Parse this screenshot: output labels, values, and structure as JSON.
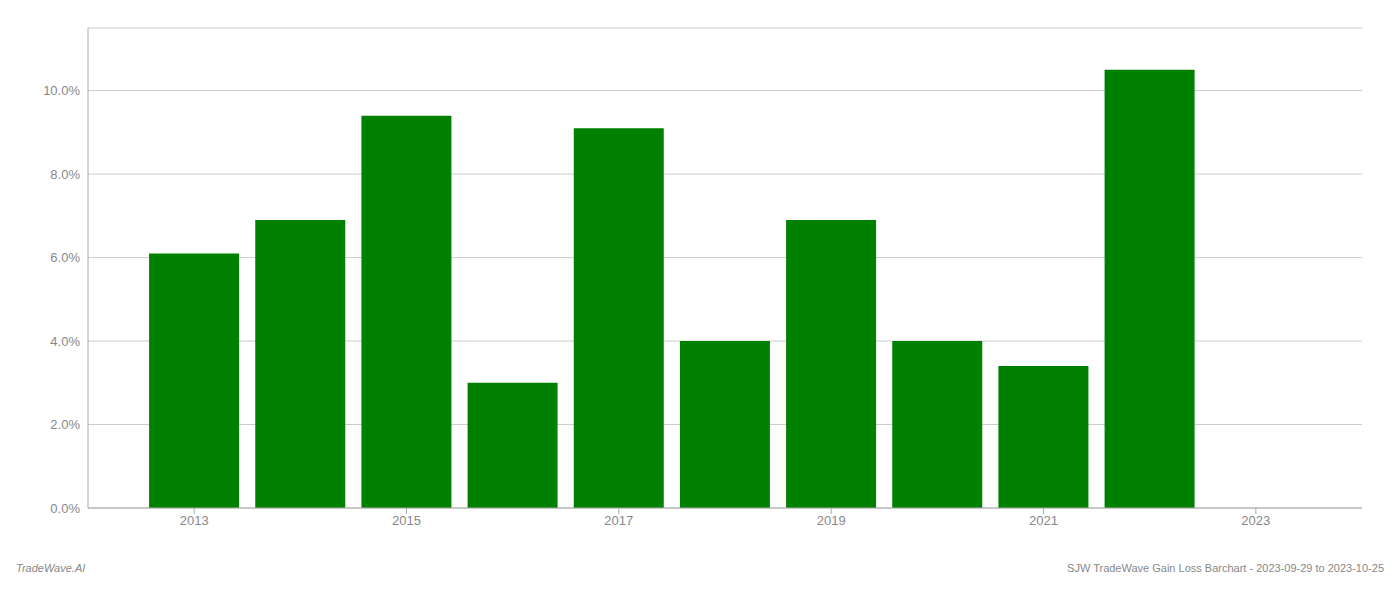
{
  "chart_data": {
    "type": "bar",
    "x": [
      2013,
      2014,
      2015,
      2016,
      2017,
      2018,
      2019,
      2020,
      2021,
      2022
    ],
    "values": [
      0.061,
      0.069,
      0.094,
      0.03,
      0.091,
      0.04,
      0.069,
      0.04,
      0.034,
      0.105
    ],
    "color": "#008000",
    "xlim": [
      2012.0,
      2024.0
    ],
    "xticks": [
      2013,
      2015,
      2017,
      2019,
      2021,
      2023
    ],
    "ylim": [
      0.0,
      0.115
    ],
    "yticks": [
      {
        "value": 0.0,
        "label": "0.0%"
      },
      {
        "value": 0.02,
        "label": "2.0%"
      },
      {
        "value": 0.04,
        "label": "4.0%"
      },
      {
        "value": 0.06,
        "label": "6.0%"
      },
      {
        "value": 0.08,
        "label": "8.0%"
      },
      {
        "value": 0.1,
        "label": "10.0%"
      }
    ],
    "grid": true,
    "annotations": [
      "TradeWave.AI",
      "SJW TradeWave Gain Loss Barchart - 2023-09-29 to 2023-10-25"
    ]
  }
}
